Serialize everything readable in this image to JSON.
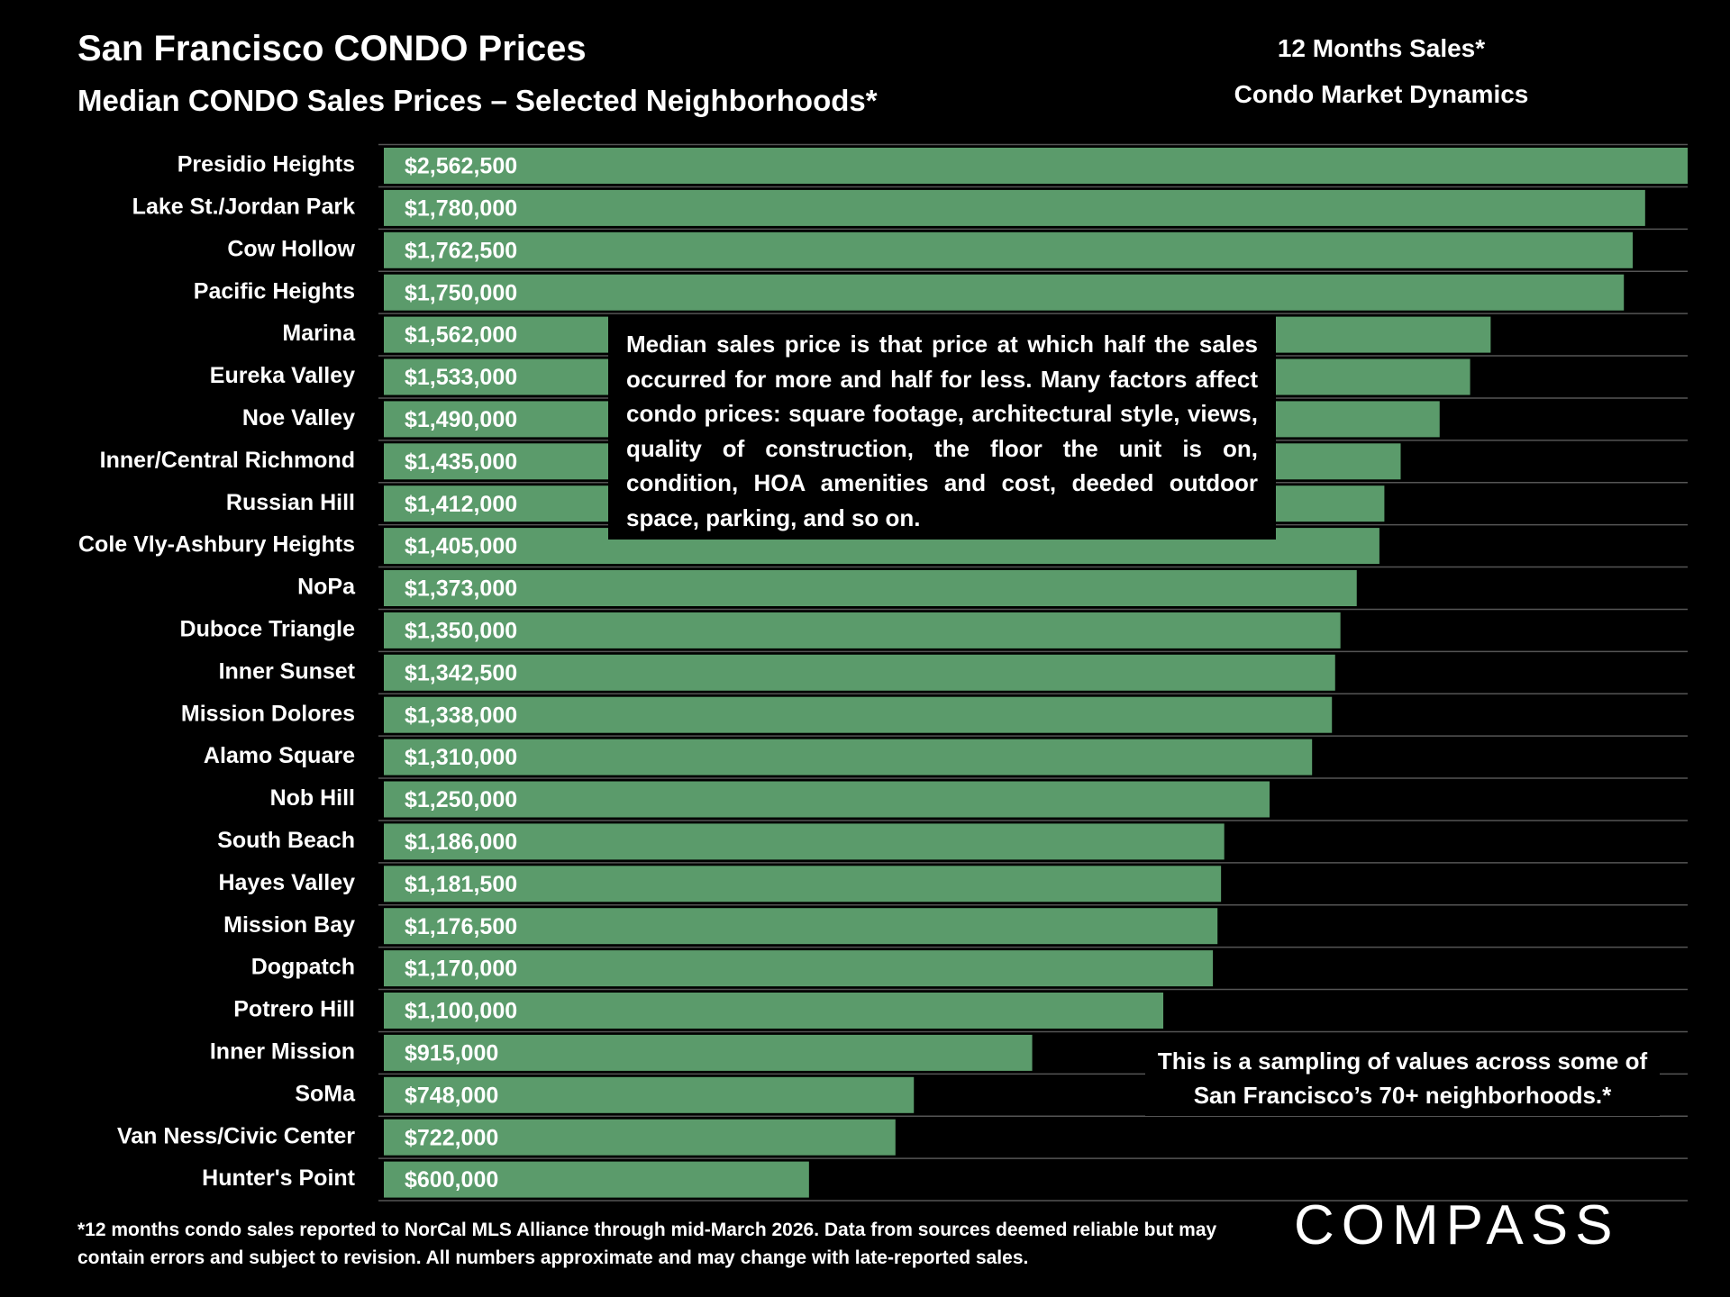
{
  "chart_data": {
    "type": "bar",
    "orientation": "horizontal",
    "title": "San Francisco CONDO Prices",
    "subtitle": "Median CONDO Sales Prices – Selected Neighborhoods*",
    "headings": [
      "12 Months Sales*",
      "Condo Market Dynamics"
    ],
    "annotation": "Median sales price is that price at which half the sales occurred for more and half for less. Many factors affect condo prices: square footage, architectural style, views, quality of construction, the floor the unit is on, condition, HOA amenities and cost, deeded outdoor space, parking, and so on.",
    "note": "This is a sampling of values across some of San Francisco’s 70+ neighborhoods.*",
    "footnote": "*12 months condo sales reported to NorCal MLS Alliance through mid-March 2026. Data from sources deemed reliable but may contain errors and subject to revision. All numbers approximate and may change with late-reported sales.",
    "categories": [
      "Presidio Heights",
      "Lake St./Jordan Park",
      "Cow Hollow",
      "Pacific Heights",
      "Marina",
      "Eureka Valley",
      "Noe Valley",
      "Inner/Central Richmond",
      "Russian Hill",
      "Cole Vly-Ashbury Heights",
      "NoPa",
      "Duboce Triangle",
      "Inner Sunset",
      "Mission Dolores",
      "Alamo Square",
      "Nob Hill",
      "South Beach",
      "Hayes Valley",
      "Mission Bay",
      "Dogpatch",
      "Potrero Hill",
      "Inner Mission",
      "SoMa",
      "Van Ness/Civic Center",
      "Hunter's Point"
    ],
    "values": [
      2562500,
      1780000,
      1762500,
      1750000,
      1562000,
      1533000,
      1490000,
      1435000,
      1412000,
      1405000,
      1373000,
      1350000,
      1342500,
      1338000,
      1310000,
      1250000,
      1186000,
      1181500,
      1176500,
      1170000,
      1100000,
      915000,
      748000,
      722000,
      600000
    ],
    "value_labels": [
      "$2,562,500",
      "$1,780,000",
      "$1,762,500",
      "$1,750,000",
      "$1,562,000",
      "$1,533,000",
      "$1,490,000",
      "$1,435,000",
      "$1,412,000",
      "$1,405,000",
      "$1,373,000",
      "$1,350,000",
      "$1,342,500",
      "$1,338,000",
      "$1,310,000",
      "$1,250,000",
      "$1,186,000",
      "$1,181,500",
      "$1,176,500",
      "$1,170,000",
      "$1,100,000",
      "$915,000",
      "$748,000",
      "$722,000",
      "$600,000"
    ],
    "color": "#5b9b6b",
    "xlim": [
      0,
      1840000
    ]
  },
  "logo": "COMPASS"
}
